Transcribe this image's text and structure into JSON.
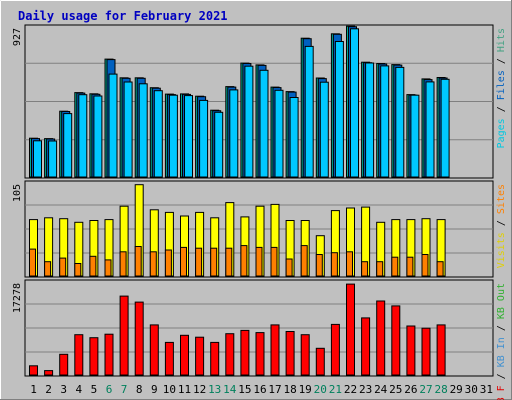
{
  "chart_data": {
    "type": "bar",
    "title": "Daily usage for February 2021",
    "categories": [
      "1",
      "2",
      "3",
      "4",
      "5",
      "6",
      "7",
      "8",
      "9",
      "10",
      "11",
      "12",
      "13",
      "14",
      "15",
      "16",
      "17",
      "18",
      "19",
      "20",
      "21",
      "22",
      "23",
      "24",
      "25",
      "26",
      "27",
      "28",
      "29",
      "30",
      "31"
    ],
    "weekend_days": [
      "6",
      "7",
      "13",
      "14",
      "20",
      "21",
      "27",
      "28"
    ],
    "panels": [
      {
        "key": "hits",
        "ymax_label": "927",
        "ylim": [
          0,
          927
        ],
        "right_label_parts": [
          {
            "text": "Pages",
            "color": "#00c8e0"
          },
          {
            "text": " / ",
            "color": "#000000"
          },
          {
            "text": "Files",
            "color": "#0060c0"
          },
          {
            "text": " / ",
            "color": "#000000"
          },
          {
            "text": "Hits",
            "color": "#40a080"
          }
        ],
        "series": [
          {
            "name": "Hits",
            "color": "#00a890",
            "values": [
              238,
              236,
              404,
              518,
              511,
              724,
              609,
              609,
              548,
              509,
              510,
              496,
              410,
              555,
              699,
              688,
              552,
              524,
              852,
              608,
              879,
              926,
              705,
              697,
              690,
              506,
              602,
              611,
              0,
              0,
              0
            ]
          },
          {
            "name": "Files",
            "color": "#0060c0",
            "values": [
              236,
              233,
              402,
              515,
              508,
              721,
              606,
              606,
              545,
              506,
              507,
              493,
              407,
              552,
              697,
              685,
              549,
              521,
              849,
              604,
              876,
              923,
              702,
              694,
              687,
              503,
              598,
              608,
              0,
              0,
              0
            ]
          },
          {
            "name": "Pages",
            "color": "#00c8ff",
            "values": [
              222,
              221,
              389,
              505,
              497,
              632,
              583,
              572,
              530,
              502,
              500,
              470,
              397,
              535,
              680,
              655,
              532,
              488,
              802,
              582,
              832,
              910,
              700,
              682,
              673,
              502,
              584,
              600,
              0,
              0,
              0
            ]
          }
        ]
      },
      {
        "key": "visits",
        "ymax_label": "105",
        "ylim": [
          0,
          105
        ],
        "right_label_parts": [
          {
            "text": "Visits",
            "color": "#e0d000"
          },
          {
            "text": " / ",
            "color": "#000000"
          },
          {
            "text": "Sites",
            "color": "#ff8000"
          }
        ],
        "series": [
          {
            "name": "Visits",
            "color": "#ffff00",
            "values": [
              63,
              65,
              64,
              60,
              62,
              63,
              78,
              102,
              74,
              71,
              67,
              71,
              65,
              82,
              66,
              78,
              80,
              62,
              62,
              45,
              73,
              76,
              77,
              60,
              63,
              63,
              64,
              63,
              0,
              0,
              0
            ]
          },
          {
            "name": "Sites",
            "color": "#ff8000",
            "values": [
              30,
              16,
              20,
              14,
              22,
              18,
              27,
              33,
              27,
              29,
              32,
              31,
              31,
              31,
              34,
              32,
              32,
              19,
              34,
              24,
              26,
              27,
              16,
              16,
              21,
              21,
              24,
              16,
              0,
              0,
              0
            ]
          }
        ]
      },
      {
        "key": "kbytes",
        "ymax_label": "17278",
        "ylim": [
          0,
          17278
        ],
        "right_label_parts": [
          {
            "text": "KB F",
            "color": "#e00000"
          },
          {
            "text": " / ",
            "color": "#000000"
          },
          {
            "text": "KB In",
            "color": "#4090d0"
          },
          {
            "text": " / ",
            "color": "#000000"
          },
          {
            "text": "KB Out",
            "color": "#30b030"
          }
        ],
        "series": [
          {
            "name": "KB F",
            "color": "#ff0000",
            "values": [
              1700,
              800,
              3800,
              7400,
              6850,
              7500,
              14500,
              13400,
              9200,
              6000,
              7300,
              6950,
              6000,
              7600,
              8200,
              7800,
              9200,
              8000,
              7400,
              4900,
              9300,
              16700,
              10500,
              13600,
              12700,
              9000,
              8600,
              9200,
              0,
              0,
              0
            ]
          }
        ]
      }
    ]
  }
}
